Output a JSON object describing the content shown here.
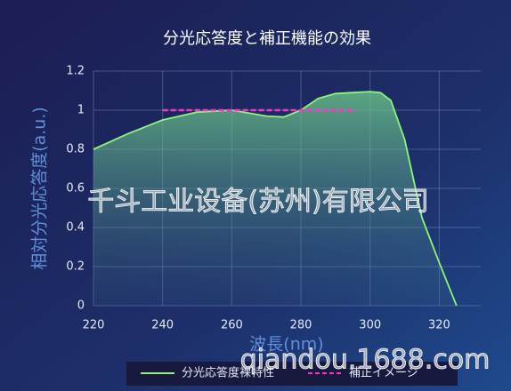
{
  "chart_data": {
    "type": "line",
    "title": "分光応答度と補正機能の効果",
    "x_label": "波長(nm)",
    "y_label": "相対分光応答度(a.u.)",
    "xlim": [
      220,
      332
    ],
    "xticks": [
      220,
      240,
      260,
      280,
      300,
      320
    ],
    "ylim": [
      0,
      1.2
    ],
    "yticks": [
      0,
      0.2,
      0.4,
      0.6,
      0.8,
      1,
      1.2
    ],
    "grid": true,
    "series": [
      {
        "name": "分光応答度裸特性",
        "color": "#8cf57a",
        "area": true,
        "x": [
          220,
          230,
          240,
          250,
          260,
          270,
          275,
          280,
          285,
          290,
          295,
          300,
          303,
          306,
          310,
          315,
          320,
          325
        ],
        "values": [
          0.8,
          0.88,
          0.95,
          0.99,
          1.0,
          0.97,
          0.965,
          1.0,
          1.06,
          1.085,
          1.09,
          1.095,
          1.09,
          1.05,
          0.85,
          0.45,
          0.22,
          0
        ]
      },
      {
        "name": "補正イメージ",
        "color": "#ff33cc",
        "dashed": true,
        "x": [
          240,
          296
        ],
        "values": [
          1.0,
          1.0
        ]
      }
    ],
    "annotations": [
      "千斗工业设备(苏州)有限公司",
      "qiandou.1688.com"
    ]
  }
}
